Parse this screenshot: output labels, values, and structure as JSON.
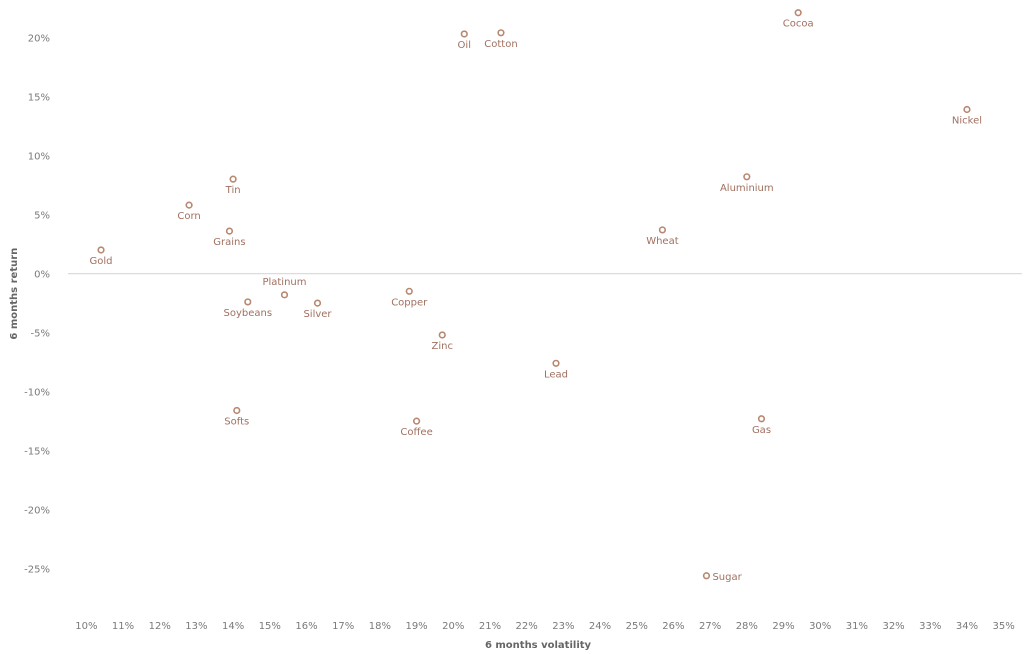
{
  "chart_data": {
    "type": "scatter",
    "title": "",
    "xlabel": "6 months volatility",
    "ylabel": "6 months return",
    "xlim": [
      0.095,
      0.355
    ],
    "ylim": [
      -0.285,
      0.225
    ],
    "x_ticks": [
      0.1,
      0.11,
      0.12,
      0.13,
      0.14,
      0.15,
      0.16,
      0.17,
      0.18,
      0.19,
      0.2,
      0.21,
      0.22,
      0.23,
      0.24,
      0.25,
      0.26,
      0.27,
      0.28,
      0.29,
      0.3,
      0.31,
      0.32,
      0.33,
      0.34,
      0.35
    ],
    "x_tick_labels": [
      "10%",
      "11%",
      "12%",
      "13%",
      "14%",
      "15%",
      "16%",
      "17%",
      "18%",
      "19%",
      "20%",
      "21%",
      "22%",
      "23%",
      "24%",
      "25%",
      "26%",
      "27%",
      "28%",
      "29%",
      "30%",
      "31%",
      "32%",
      "33%",
      "34%",
      "35%"
    ],
    "y_ticks": [
      0.2,
      0.15,
      0.1,
      0.05,
      0.0,
      -0.05,
      -0.1,
      -0.15,
      -0.2,
      -0.25
    ],
    "y_tick_labels": [
      "20%",
      "15%",
      "10%",
      "5%",
      "0%",
      "-5%",
      "-10%",
      "-15%",
      "-20%",
      "-25%"
    ],
    "grid": false,
    "zero_line": true,
    "marker_color": "#b8876f",
    "points": [
      {
        "label": "Gold",
        "x": 0.104,
        "y": 0.02,
        "label_pos": "below"
      },
      {
        "label": "Corn",
        "x": 0.128,
        "y": 0.058,
        "label_pos": "below"
      },
      {
        "label": "Tin",
        "x": 0.14,
        "y": 0.08,
        "label_pos": "below"
      },
      {
        "label": "Grains",
        "x": 0.139,
        "y": 0.036,
        "label_pos": "below"
      },
      {
        "label": "Platinum",
        "x": 0.154,
        "y": -0.018,
        "label_pos": "above"
      },
      {
        "label": "Soybeans",
        "x": 0.144,
        "y": -0.024,
        "label_pos": "below"
      },
      {
        "label": "Silver",
        "x": 0.163,
        "y": -0.025,
        "label_pos": "below"
      },
      {
        "label": "Softs",
        "x": 0.141,
        "y": -0.116,
        "label_pos": "below"
      },
      {
        "label": "Copper",
        "x": 0.188,
        "y": -0.015,
        "label_pos": "below"
      },
      {
        "label": "Zinc",
        "x": 0.197,
        "y": -0.052,
        "label_pos": "below"
      },
      {
        "label": "Coffee",
        "x": 0.19,
        "y": -0.125,
        "label_pos": "below"
      },
      {
        "label": "Oil",
        "x": 0.203,
        "y": 0.203,
        "label_pos": "below"
      },
      {
        "label": "Cotton",
        "x": 0.213,
        "y": 0.204,
        "label_pos": "below"
      },
      {
        "label": "Lead",
        "x": 0.228,
        "y": -0.076,
        "label_pos": "below"
      },
      {
        "label": "Wheat",
        "x": 0.257,
        "y": 0.037,
        "label_pos": "below"
      },
      {
        "label": "Aluminium",
        "x": 0.28,
        "y": 0.082,
        "label_pos": "below"
      },
      {
        "label": "Gas",
        "x": 0.284,
        "y": -0.123,
        "label_pos": "below"
      },
      {
        "label": "Sugar",
        "x": 0.269,
        "y": -0.256,
        "label_pos": "right"
      },
      {
        "label": "Cocoa",
        "x": 0.294,
        "y": 0.221,
        "label_pos": "below"
      },
      {
        "label": "Nickel",
        "x": 0.34,
        "y": 0.139,
        "label_pos": "below"
      }
    ]
  }
}
